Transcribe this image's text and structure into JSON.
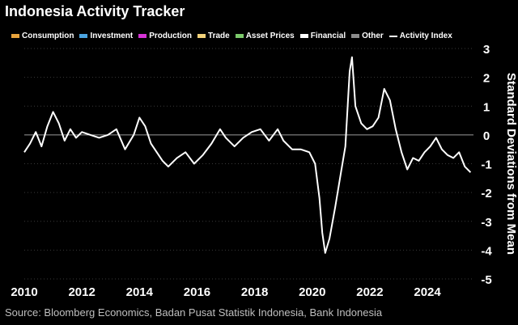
{
  "title": "Indonesia Activity Tracker",
  "source": "Source: Bloomberg Economics, Badan Pusat Statistik Indonesia, Bank Indonesia",
  "legend": [
    {
      "label": "Consumption",
      "color": "#e8a33c",
      "kind": "bar"
    },
    {
      "label": "Investment",
      "color": "#4aa3df",
      "kind": "bar"
    },
    {
      "label": "Production",
      "color": "#d633d6",
      "kind": "bar"
    },
    {
      "label": "Trade",
      "color": "#f2d179",
      "kind": "bar"
    },
    {
      "label": "Asset Prices",
      "color": "#7cc96b",
      "kind": "bar"
    },
    {
      "label": "Financial",
      "color": "#ffffff",
      "kind": "bar"
    },
    {
      "label": "Other",
      "color": "#8c8c8c",
      "kind": "bar"
    },
    {
      "label": "Activity Index",
      "color": "#ffffff",
      "kind": "line"
    }
  ],
  "chart_data": {
    "type": "bar",
    "stacked": true,
    "title": "Indonesia Activity Tracker",
    "xlabel": "",
    "ylabel": "Standard Deviations from Mean",
    "ylim": [
      -5,
      3
    ],
    "xlim": [
      2010,
      2025.6
    ],
    "x_ticks": [
      "2010",
      "2012",
      "2014",
      "2016",
      "2018",
      "2020",
      "2022",
      "2024"
    ],
    "y_ticks": [
      "3",
      "2",
      "1",
      "0",
      "-1",
      "-2",
      "-3",
      "-4",
      "-5"
    ],
    "grid": "horizontal dotted",
    "legend_position": "top",
    "y_axis_side": "right",
    "series": [
      {
        "name": "Activity Index",
        "type": "line",
        "color": "#ffffff",
        "x": [
          2010.0,
          2010.2,
          2010.4,
          2010.6,
          2010.8,
          2011.0,
          2011.2,
          2011.4,
          2011.6,
          2011.8,
          2012.0,
          2012.3,
          2012.6,
          2012.9,
          2013.2,
          2013.5,
          2013.8,
          2014.0,
          2014.2,
          2014.4,
          2014.6,
          2014.8,
          2015.0,
          2015.3,
          2015.6,
          2015.9,
          2016.2,
          2016.5,
          2016.8,
          2017.0,
          2017.3,
          2017.6,
          2017.9,
          2018.2,
          2018.5,
          2018.8,
          2019.0,
          2019.3,
          2019.6,
          2019.9,
          2020.1,
          2020.25,
          2020.35,
          2020.45,
          2020.6,
          2020.8,
          2021.0,
          2021.15,
          2021.3,
          2021.38,
          2021.5,
          2021.7,
          2021.9,
          2022.1,
          2022.3,
          2022.5,
          2022.7,
          2022.9,
          2023.1,
          2023.3,
          2023.5,
          2023.7,
          2023.9,
          2024.1,
          2024.3,
          2024.5,
          2024.7,
          2024.9,
          2025.1,
          2025.3,
          2025.5
        ],
        "y": [
          -0.6,
          -0.3,
          0.1,
          -0.4,
          0.3,
          0.8,
          0.4,
          -0.2,
          0.2,
          -0.1,
          0.1,
          0.0,
          -0.1,
          0.0,
          0.2,
          -0.5,
          0.0,
          0.6,
          0.3,
          -0.3,
          -0.6,
          -0.9,
          -1.1,
          -0.8,
          -0.6,
          -1.0,
          -0.7,
          -0.3,
          0.2,
          -0.1,
          -0.4,
          -0.1,
          0.1,
          0.2,
          -0.2,
          0.2,
          -0.2,
          -0.5,
          -0.5,
          -0.6,
          -1.0,
          -2.2,
          -3.4,
          -4.1,
          -3.6,
          -2.5,
          -1.3,
          -0.4,
          2.2,
          2.7,
          1.0,
          0.4,
          0.2,
          0.3,
          0.6,
          1.6,
          1.2,
          0.2,
          -0.6,
          -1.2,
          -0.8,
          -0.9,
          -0.6,
          -0.4,
          -0.1,
          -0.5,
          -0.7,
          -0.8,
          -0.6,
          -1.1,
          -1.3
        ]
      }
    ]
  }
}
